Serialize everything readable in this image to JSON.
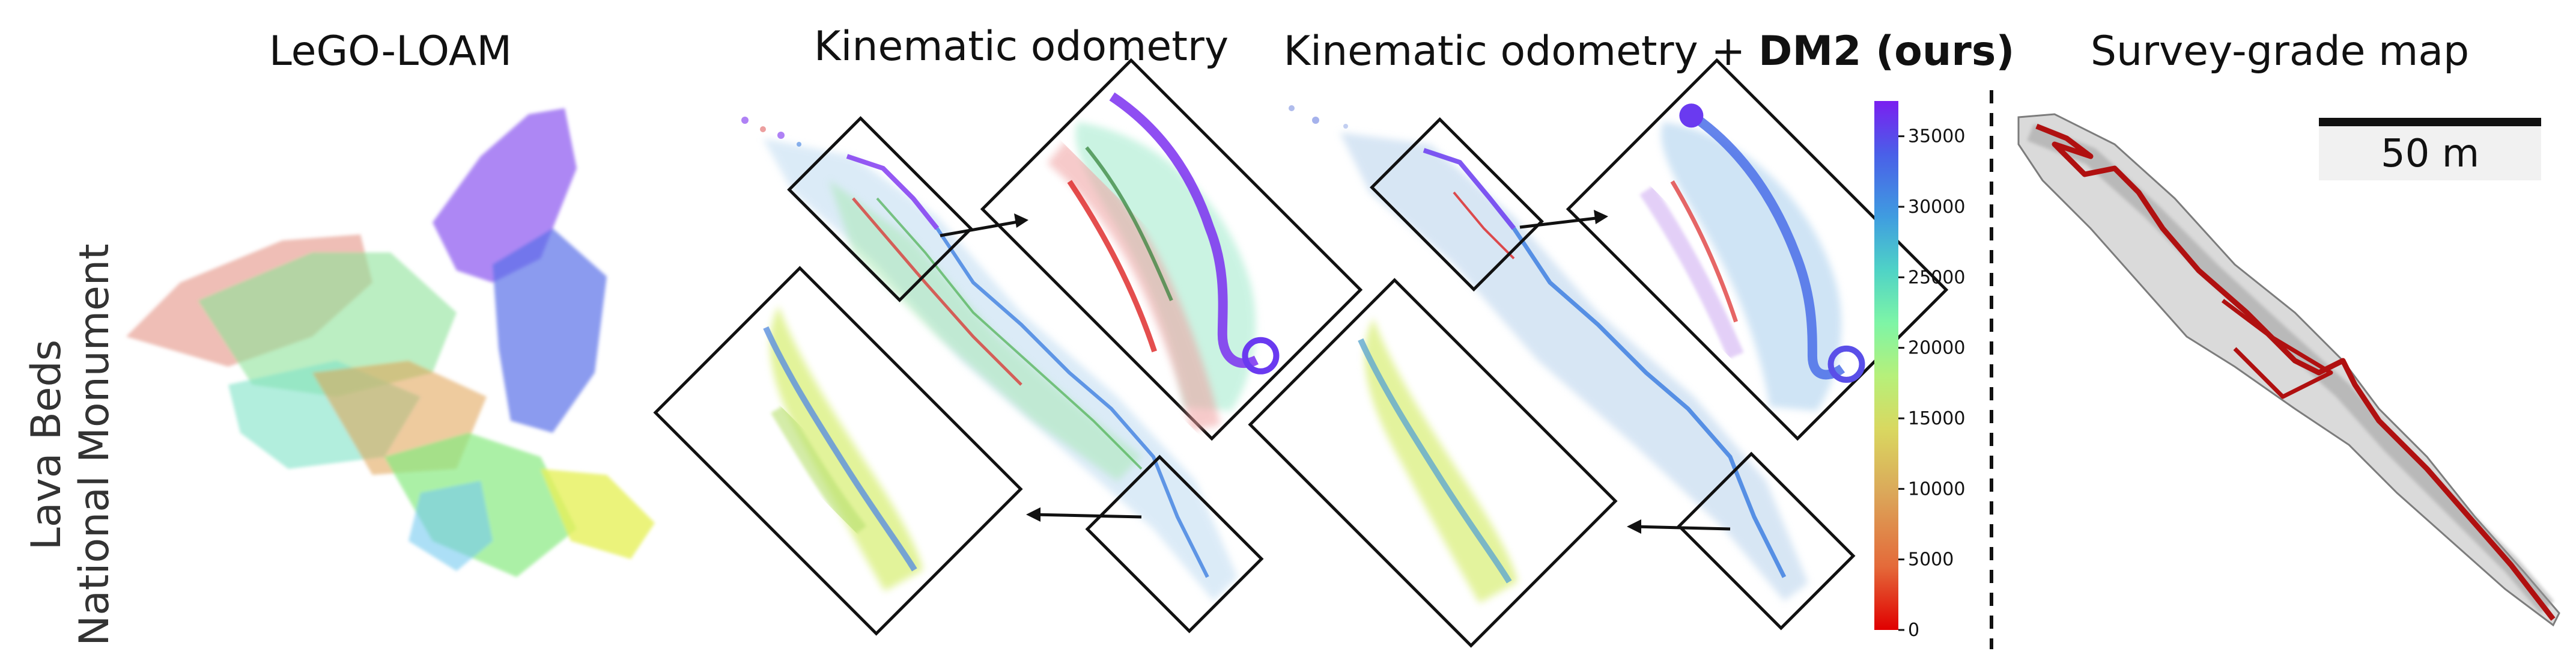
{
  "panels": [
    {
      "id": "lego",
      "title": "LeGO-LOAM"
    },
    {
      "id": "kin",
      "title": "Kinematic odometry"
    },
    {
      "id": "dm2",
      "title_plain": "Kinematic odometry + ",
      "title_bold": "DM2 (ours)"
    },
    {
      "id": "survey",
      "title": "Survey-grade map"
    }
  ],
  "row_label": {
    "line1": "Lava Beds",
    "line2": "National Monument"
  },
  "colorbar": {
    "min": 0,
    "max": 37500,
    "ticks": [
      0,
      5000,
      10000,
      15000,
      20000,
      25000,
      30000,
      35000
    ],
    "colors": [
      "#e00000",
      "#e46a3a",
      "#dba85a",
      "#d9d860",
      "#b6f07a",
      "#7ef5a6",
      "#4fd3c6",
      "#3f9de0",
      "#4a5fe8",
      "#7a1ff0"
    ]
  },
  "scale_bar": {
    "label": "50 m"
  },
  "track_colors": {
    "purple": "#7b2ff0",
    "blue": "#3f7fe0",
    "teal": "#5ccfc0",
    "green": "#86e88a",
    "yellow": "#d9ee55",
    "orange": "#e0803a",
    "red": "#dd2222",
    "survey": "#b01010"
  }
}
